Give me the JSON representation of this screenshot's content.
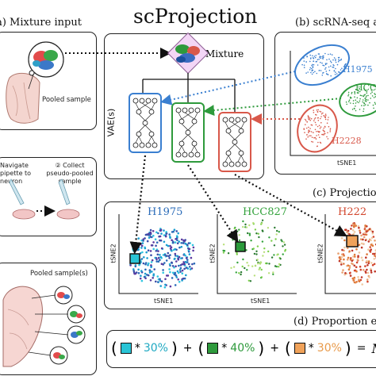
{
  "title": "scProjection",
  "panels": {
    "a": {
      "title": "(a) Mixture input",
      "pooled_sample": "Pooled sample"
    },
    "b": {
      "title": "(b) scRNA-seq a",
      "xlabel": "tSNE1",
      "clusters": [
        {
          "label": "H1975",
          "color": "#3a7fd0"
        },
        {
          "label": "HCC",
          "color": "#2e9a3c"
        },
        {
          "label": "H2228",
          "color": "#d8584a"
        }
      ]
    },
    "c": {
      "title": "(c) Projectio",
      "plots": [
        {
          "label": "H1975",
          "color": "#2a6bb8",
          "xlabel": "tSNE1",
          "ylabel": "tSNE2",
          "marker": "#29c4d6"
        },
        {
          "label": "HCC827",
          "color": "#33a23c",
          "xlabel": "tSNE1",
          "ylabel": "tSNE2",
          "marker": "#2a9a3a"
        },
        {
          "label": "H222",
          "color": "#d2462d",
          "xlabel": "",
          "ylabel": "tSNE2",
          "marker": "#f0a25a"
        }
      ]
    },
    "d": {
      "title": "(d) Proportion e",
      "terms": [
        {
          "pct": "30%",
          "color": "#29c4d6",
          "text_color": "#1fa9c2"
        },
        {
          "pct": "40%",
          "color": "#2e9a3c",
          "text_color": "#2e9a3c"
        },
        {
          "pct": "30%",
          "color": "#f0a25a",
          "text_color": "#e89a4a"
        }
      ],
      "op_star": "*",
      "op_plus": "+",
      "op_eq": "=",
      "result": "M̂"
    },
    "center": {
      "mixture": "Mixture",
      "vae": "VAE(s)"
    },
    "lower_left": {
      "step1": "Navigate pipette to neuron",
      "step2": "② Collect pseudo-pooled sample",
      "pooled_samples": "Pooled sample(s)"
    }
  }
}
